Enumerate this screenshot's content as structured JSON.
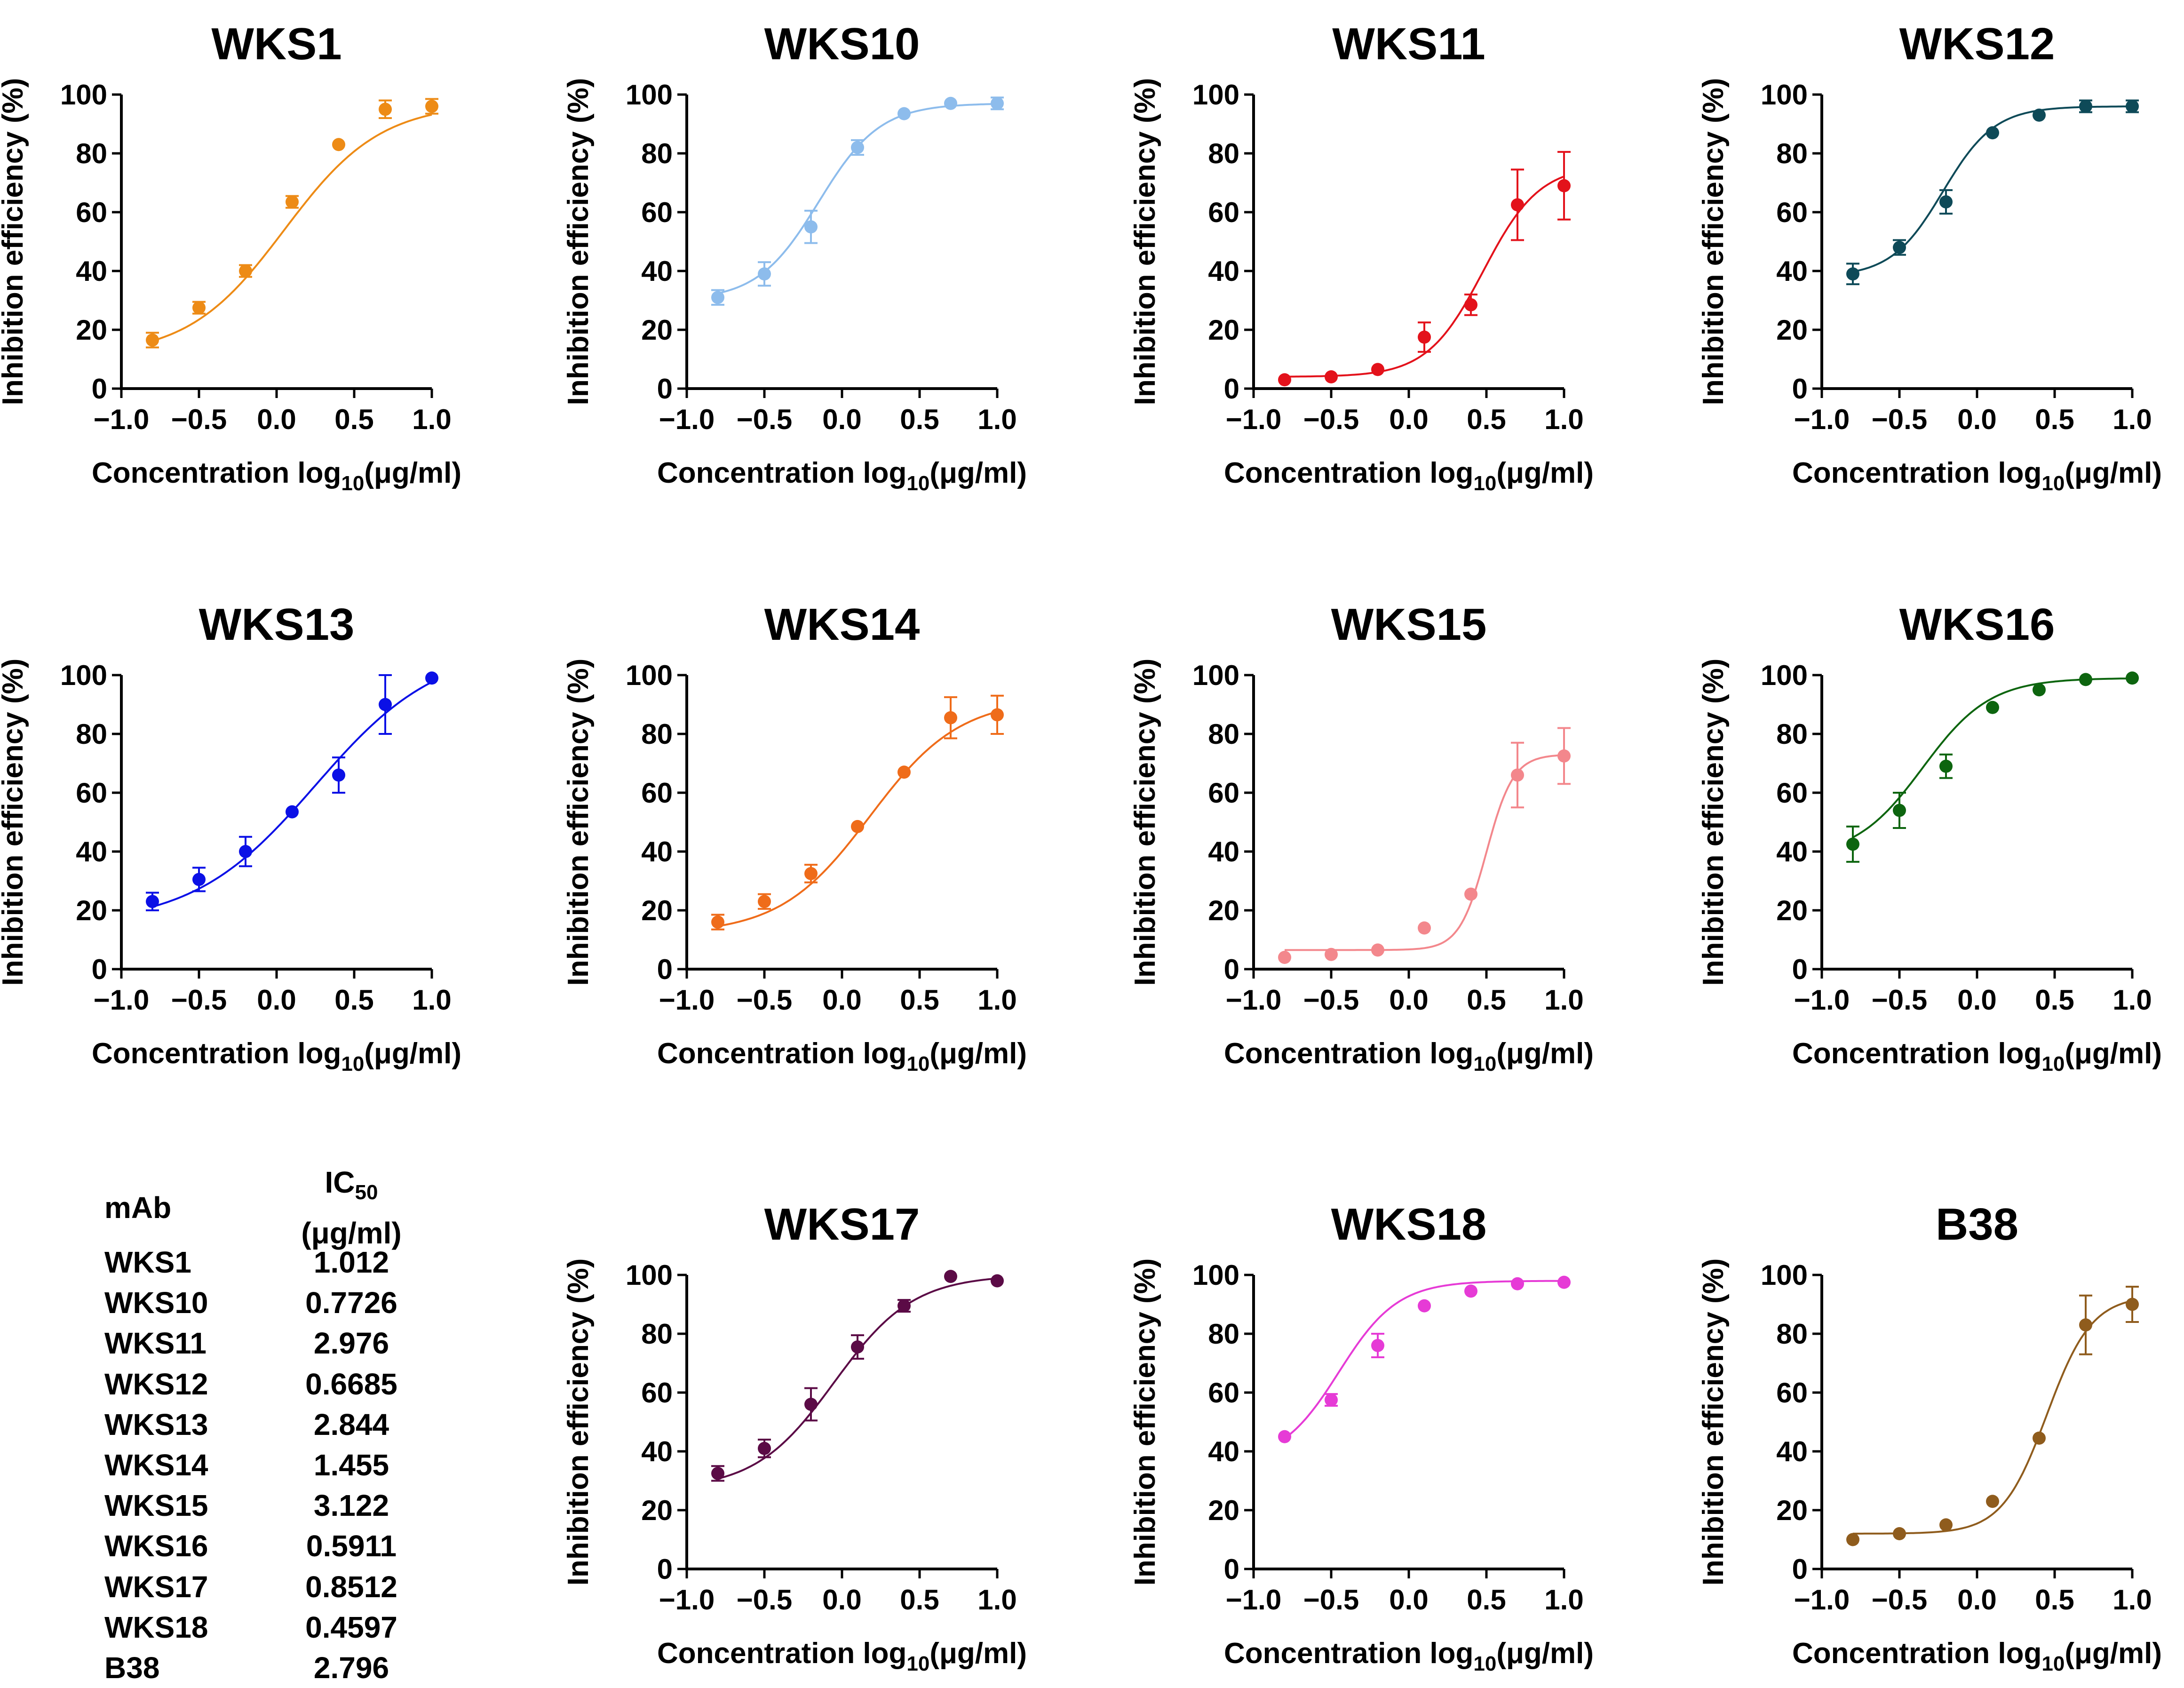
{
  "chart_data": [
    {
      "type": "scatter",
      "title": "WKS1",
      "color": "#ed8b16",
      "x": [
        -0.8,
        -0.5,
        -0.2,
        0.1,
        0.4,
        0.7,
        1.0
      ],
      "y": [
        16.5,
        27.5,
        40,
        63.5,
        83,
        95,
        96
      ],
      "err": [
        2.5,
        2,
        2,
        2,
        1,
        3,
        2.5
      ],
      "fit": {
        "bottom": 11,
        "top": 97,
        "logec50": 0.05,
        "hill": 1.4
      },
      "xlabel": "Concentration log",
      "xlabel_sub": "10",
      "xlabel_unit": "(μg/ml)",
      "ylabel": "Inhibition efficiency (%)",
      "xlim": [
        -1.0,
        1.0
      ],
      "ylim": [
        0,
        100
      ],
      "xticks": [
        "-1.0",
        "-0.5",
        "0.0",
        "0.5",
        "1.0"
      ],
      "yticks": [
        "0",
        "20",
        "40",
        "60",
        "80",
        "100"
      ]
    },
    {
      "type": "scatter",
      "title": "WKS10",
      "color": "#8dbcec",
      "x": [
        -0.8,
        -0.5,
        -0.2,
        0.1,
        0.4,
        0.7,
        1.0
      ],
      "y": [
        31,
        39,
        55,
        82,
        93.5,
        97,
        97
      ],
      "err": [
        2.5,
        4,
        5.5,
        2.5,
        1,
        1,
        2
      ],
      "fit": {
        "bottom": 30,
        "top": 97,
        "logec50": -0.15,
        "hill": 2.2
      },
      "xlabel": "Concentration log",
      "xlabel_sub": "10",
      "xlabel_unit": "(μg/ml)",
      "ylabel": "Inhibition efficiency (%)",
      "xlim": [
        -1.0,
        1.0
      ],
      "ylim": [
        0,
        100
      ],
      "xticks": [
        "-1.0",
        "-0.5",
        "0.0",
        "0.5",
        "1.0"
      ],
      "yticks": [
        "0",
        "20",
        "40",
        "60",
        "80",
        "100"
      ]
    },
    {
      "type": "scatter",
      "title": "WKS11",
      "color": "#e3121b",
      "x": [
        -0.8,
        -0.5,
        -0.2,
        0.1,
        0.4,
        0.7,
        1.0
      ],
      "y": [
        3,
        4,
        6.5,
        17.5,
        28.5,
        62.5,
        69
      ],
      "err": [
        0.5,
        0.5,
        1,
        5,
        3.5,
        12,
        11.5
      ],
      "fit": {
        "bottom": 4,
        "top": 76,
        "logec50": 0.48,
        "hill": 2.4
      },
      "xlabel": "Concentration log",
      "xlabel_sub": "10",
      "xlabel_unit": "(μg/ml)",
      "ylabel": "Inhibition efficiency (%)",
      "xlim": [
        -1.0,
        1.0
      ],
      "ylim": [
        0,
        100
      ],
      "xticks": [
        "-1.0",
        "-0.5",
        "0.0",
        "0.5",
        "1.0"
      ],
      "yticks": [
        "0",
        "20",
        "40",
        "60",
        "80",
        "100"
      ]
    },
    {
      "type": "scatter",
      "title": "WKS12",
      "color": "#0e4a58",
      "x": [
        -0.8,
        -0.5,
        -0.2,
        0.1,
        0.4,
        0.7,
        1.0
      ],
      "y": [
        39,
        48,
        63.5,
        87,
        93,
        96,
        96
      ],
      "err": [
        3.5,
        2.5,
        4,
        1,
        1,
        2,
        2
      ],
      "fit": {
        "bottom": 38,
        "top": 96,
        "logec50": -0.22,
        "hill": 2.6
      },
      "xlabel": "Concentration log",
      "xlabel_sub": "10",
      "xlabel_unit": "(μg/ml)",
      "ylabel": "Inhibition efficiency (%)",
      "xlim": [
        -1.0,
        1.0
      ],
      "ylim": [
        0,
        100
      ],
      "xticks": [
        "-1.0",
        "-0.5",
        "0.0",
        "0.5",
        "1.0"
      ],
      "yticks": [
        "0",
        "20",
        "40",
        "60",
        "80",
        "100"
      ]
    },
    {
      "type": "scatter",
      "title": "WKS13",
      "color": "#0b10e6",
      "x": [
        -0.8,
        -0.5,
        -0.2,
        0.1,
        0.4,
        0.7,
        1.0
      ],
      "y": [
        23,
        30.5,
        40,
        53.5,
        66,
        90,
        99
      ],
      "err": [
        3,
        4,
        5,
        1,
        6,
        10,
        0.5
      ],
      "fit": {
        "bottom": 15,
        "top": 110,
        "logec50": 0.25,
        "hill": 1.1
      },
      "xlabel": "Concentration log",
      "xlabel_sub": "10",
      "xlabel_unit": "(μg/ml)",
      "ylabel": "Inhibition efficiency (%)",
      "xlim": [
        -1.0,
        1.0
      ],
      "ylim": [
        0,
        100
      ],
      "xticks": [
        "-1.0",
        "-0.5",
        "0.0",
        "0.5",
        "1.0"
      ],
      "yticks": [
        "0",
        "20",
        "40",
        "60",
        "80",
        "100"
      ]
    },
    {
      "type": "scatter",
      "title": "WKS14",
      "color": "#ef6c1a",
      "x": [
        -0.8,
        -0.5,
        -0.2,
        0.1,
        0.4,
        0.7,
        1.0
      ],
      "y": [
        16,
        23,
        32.5,
        48.5,
        67,
        85.5,
        86.5
      ],
      "err": [
        2.5,
        2.5,
        3,
        1,
        1,
        7,
        6.5
      ],
      "fit": {
        "bottom": 12,
        "top": 92,
        "logec50": 0.18,
        "hill": 1.5
      },
      "xlabel": "Concentration log",
      "xlabel_sub": "10",
      "xlabel_unit": "(μg/ml)",
      "ylabel": "Inhibition efficiency (%)",
      "xlim": [
        -1.0,
        1.0
      ],
      "ylim": [
        0,
        100
      ],
      "xticks": [
        "-1.0",
        "-0.5",
        "0.0",
        "0.5",
        "1.0"
      ],
      "yticks": [
        "0",
        "20",
        "40",
        "60",
        "80",
        "100"
      ]
    },
    {
      "type": "scatter",
      "title": "WKS15",
      "color": "#f3878c",
      "x": [
        -0.8,
        -0.5,
        -0.2,
        0.1,
        0.4,
        0.7,
        1.0
      ],
      "y": [
        4,
        5,
        6.5,
        14,
        25.5,
        66,
        72.5
      ],
      "err": [
        0.5,
        0.5,
        1,
        1,
        1,
        11,
        9.5
      ],
      "fit": {
        "bottom": 6.5,
        "top": 73,
        "logec50": 0.5,
        "hill": 5.0
      },
      "xlabel": "Concentration log",
      "xlabel_sub": "10",
      "xlabel_unit": "(μg/ml)",
      "ylabel": "Inhibition efficiency (%)",
      "xlim": [
        -1.0,
        1.0
      ],
      "ylim": [
        0,
        100
      ],
      "xticks": [
        "-1.0",
        "-0.5",
        "0.0",
        "0.5",
        "1.0"
      ],
      "yticks": [
        "0",
        "20",
        "40",
        "60",
        "80",
        "100"
      ]
    },
    {
      "type": "scatter",
      "title": "WKS16",
      "color": "#0d650f",
      "x": [
        -0.8,
        -0.5,
        -0.2,
        0.1,
        0.4,
        0.7,
        1.0
      ],
      "y": [
        42.5,
        54,
        69,
        89,
        95,
        98.5,
        99
      ],
      "err": [
        6,
        6,
        4,
        1,
        1,
        1,
        0.5
      ],
      "fit": {
        "bottom": 38,
        "top": 99,
        "logec50": -0.35,
        "hill": 2.0
      },
      "xlabel": "Concentration log",
      "xlabel_sub": "10",
      "xlabel_unit": "(μg/ml)",
      "ylabel": "Inhibition efficiency (%)",
      "xlim": [
        -1.0,
        1.0
      ],
      "ylim": [
        0,
        100
      ],
      "xticks": [
        "-1.0",
        "-0.5",
        "0.0",
        "0.5",
        "1.0"
      ],
      "yticks": [
        "0",
        "20",
        "40",
        "60",
        "80",
        "100"
      ]
    },
    {
      "type": "scatter",
      "title": "WKS17",
      "color": "#5b0b46",
      "x": [
        -0.8,
        -0.5,
        -0.2,
        0.1,
        0.4,
        0.7,
        1.0
      ],
      "y": [
        32.5,
        41,
        56,
        75.5,
        89.5,
        99.5,
        98
      ],
      "err": [
        2.5,
        3,
        5.5,
        4,
        2,
        0.5,
        0.5
      ],
      "fit": {
        "bottom": 27,
        "top": 100,
        "logec50": -0.05,
        "hill": 1.7
      },
      "xlabel": "Concentration log",
      "xlabel_sub": "10",
      "xlabel_unit": "(μg/ml)",
      "ylabel": "Inhibition efficiency (%)",
      "xlim": [
        -1.0,
        1.0
      ],
      "ylim": [
        0,
        100
      ],
      "xticks": [
        "-1.0",
        "-0.5",
        "0.0",
        "0.5",
        "1.0"
      ],
      "yticks": [
        "0",
        "20",
        "40",
        "60",
        "80",
        "100"
      ]
    },
    {
      "type": "scatter",
      "title": "WKS18",
      "color": "#e63bd6",
      "x": [
        -0.8,
        -0.5,
        -0.2,
        0.1,
        0.4,
        0.7,
        1.0
      ],
      "y": [
        45,
        57.5,
        76,
        89.5,
        94.5,
        97,
        97.5
      ],
      "err": [
        1,
        2,
        4,
        1,
        1,
        0.5,
        0.5
      ],
      "fit": {
        "bottom": 36,
        "top": 98,
        "logec50": -0.45,
        "hill": 2.3
      },
      "xlabel": "Concentration log",
      "xlabel_sub": "10",
      "xlabel_unit": "(μg/ml)",
      "ylabel": "Inhibition efficiency (%)",
      "xlim": [
        -1.0,
        1.0
      ],
      "ylim": [
        0,
        100
      ],
      "xticks": [
        "-1.0",
        "-0.5",
        "0.0",
        "0.5",
        "1.0"
      ],
      "yticks": [
        "0",
        "20",
        "40",
        "60",
        "80",
        "100"
      ]
    },
    {
      "type": "scatter",
      "title": "B38",
      "color": "#8f5c1d",
      "x": [
        -0.8,
        -0.5,
        -0.2,
        0.1,
        0.4,
        0.7,
        1.0
      ],
      "y": [
        10,
        12,
        15,
        23,
        44.5,
        83,
        90
      ],
      "err": [
        0.5,
        0.5,
        0.5,
        1,
        1,
        10,
        6
      ],
      "fit": {
        "bottom": 12,
        "top": 93,
        "logec50": 0.45,
        "hill": 3.0
      },
      "xlabel": "Concentration log",
      "xlabel_sub": "10",
      "xlabel_unit": "(μg/ml)",
      "ylabel": "Inhibition efficiency (%)",
      "xlim": [
        -1.0,
        1.0
      ],
      "ylim": [
        0,
        100
      ],
      "xticks": [
        "-1.0",
        "-0.5",
        "0.0",
        "0.5",
        "1.0"
      ],
      "yticks": [
        "0",
        "20",
        "40",
        "60",
        "80",
        "100"
      ]
    }
  ],
  "ic50_table": {
    "col_mab": "mAb",
    "col_ic": "IC",
    "col_ic_sub": "50",
    "col_unit": "(μg/ml)",
    "rows": [
      {
        "mab": "WKS1",
        "value": "1.012"
      },
      {
        "mab": "WKS10",
        "value": "0.7726"
      },
      {
        "mab": "WKS11",
        "value": "2.976"
      },
      {
        "mab": "WKS12",
        "value": "0.6685"
      },
      {
        "mab": "WKS13",
        "value": "2.844"
      },
      {
        "mab": "WKS14",
        "value": "1.455"
      },
      {
        "mab": "WKS15",
        "value": "3.122"
      },
      {
        "mab": "WKS16",
        "value": "0.5911"
      },
      {
        "mab": "WKS17",
        "value": "0.8512"
      },
      {
        "mab": "WKS18",
        "value": "0.4597"
      },
      {
        "mab": "B38",
        "value": "2.796"
      }
    ]
  }
}
